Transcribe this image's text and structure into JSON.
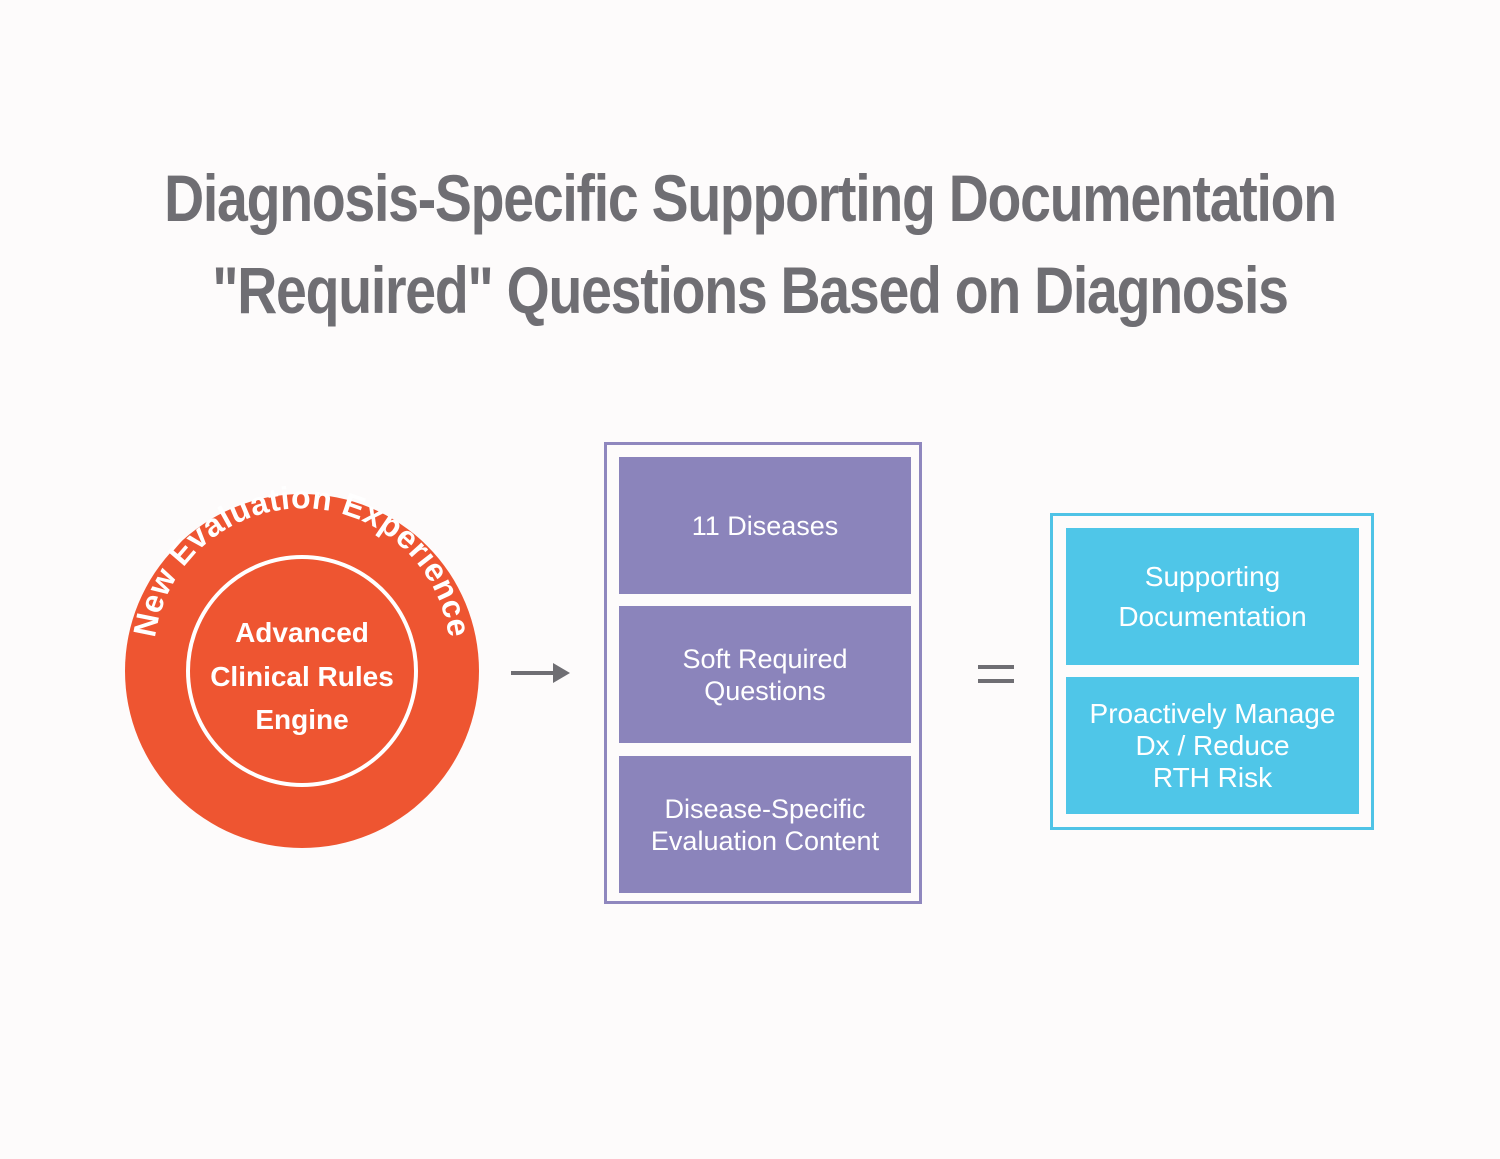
{
  "title_line1": "Diagnosis-Specific Supporting Documentation",
  "title_line2": "\"Required\" Questions Based on Diagnosis",
  "circle": {
    "arc_text": "New Evaluation Experience",
    "inner_line1": "Advanced",
    "inner_line2": "Clinical Rules",
    "inner_line3": "Engine",
    "color": "#ee5531"
  },
  "arrow_symbol": "→",
  "equals_symbol": "=",
  "middle_boxes": [
    {
      "label": "11 Diseases"
    },
    {
      "label": "Soft Required\nQuestions"
    },
    {
      "label": "Disease-Specific\nEvaluation Content"
    }
  ],
  "result_boxes": [
    {
      "label": "Supporting\nDocumentation"
    },
    {
      "label": "Proactively Manage\nDx / Reduce\nRTH Risk"
    }
  ],
  "colors": {
    "title": "#6f6e73",
    "purple": "#8b84bb",
    "blue": "#4fc6e8",
    "connector": "#6f6e73"
  }
}
